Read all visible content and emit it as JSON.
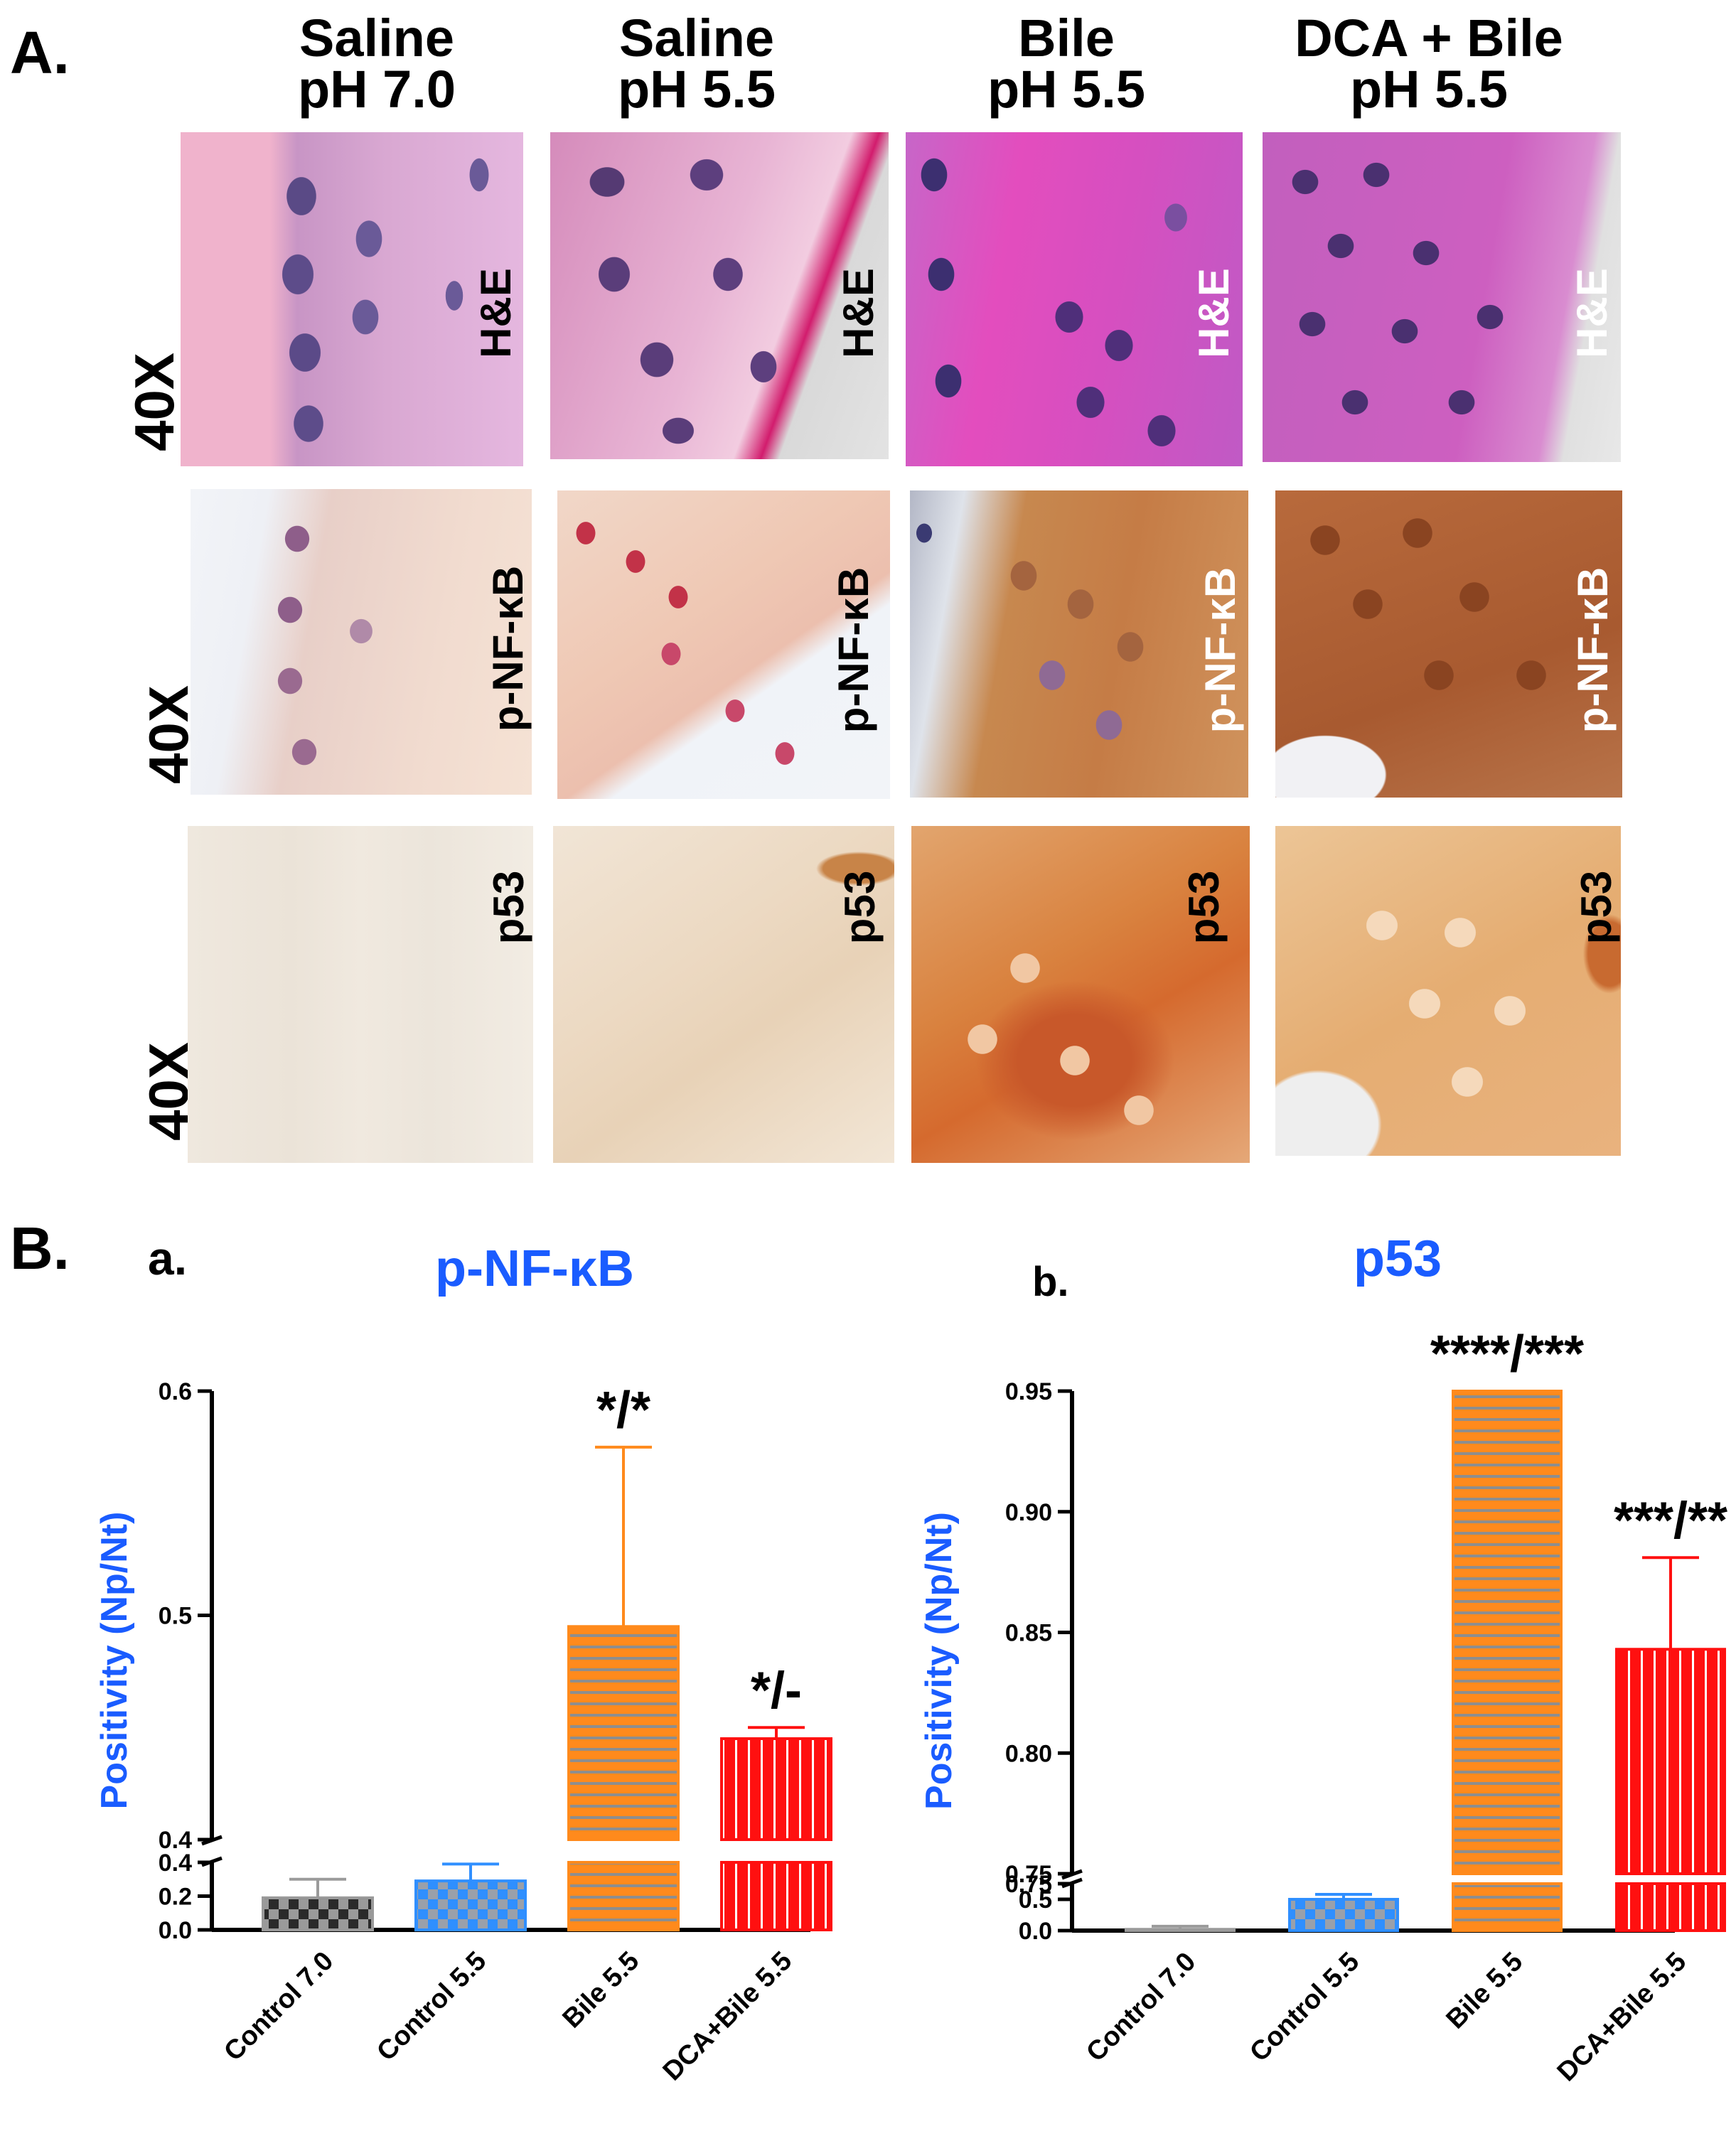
{
  "panel_a": {
    "letter": "A.",
    "columns": [
      {
        "line1": "Saline",
        "line2": "pH 7.0"
      },
      {
        "line1": "Saline",
        "line2": "pH 5.5"
      },
      {
        "line1": "Bile",
        "line2": "pH 5.5"
      },
      {
        "line1": "DCA + Bile",
        "line2": "pH 5.5"
      }
    ],
    "rows": [
      {
        "magnification": "40X",
        "stain": "H&E"
      },
      {
        "magnification": "40X",
        "stain": "p-NF-κB"
      },
      {
        "magnification": "40X",
        "stain": "p53"
      }
    ]
  },
  "panel_b": {
    "letter": "B.",
    "colors": {
      "control70": "#9a9a9a",
      "control55": "#2f8fff",
      "bile55": "#ff8a1c",
      "dcabile55": "#ff1010",
      "title": "#1a5cff"
    }
  },
  "chart_data": [
    {
      "type": "bar",
      "sublabel": "a.",
      "title": "p-NF-κB",
      "ylabel": "Positivity (Np/Nt)",
      "categories": [
        "Control 7.0",
        "Control 5.5",
        "Bile 5.5",
        "DCA+Bile 5.5"
      ],
      "values": [
        0.19,
        0.29,
        0.495,
        0.445
      ],
      "errors": [
        0.11,
        0.1,
        0.08,
        0.005
      ],
      "annotations": [
        "",
        "",
        "*/*",
        "*/-"
      ],
      "y_break": {
        "lower_range": [
          0.0,
          0.4
        ],
        "upper_range": [
          0.4,
          0.6
        ]
      },
      "lower_ticks": [
        "0.0",
        "0.2",
        "0.4"
      ],
      "upper_ticks": [
        "0.4",
        "0.5",
        "0.6"
      ],
      "patterns": [
        "checker",
        "checker",
        "horizontal",
        "vertical"
      ]
    },
    {
      "type": "bar",
      "sublabel": "b.",
      "title": "p53",
      "ylabel": "Positivity (Np/Nt)",
      "categories": [
        "Control 7.0",
        "Control 5.5",
        "Bile 5.5",
        "DCA+Bile 5.5"
      ],
      "values": [
        0.02,
        0.5,
        0.95,
        0.843
      ],
      "errors": [
        0.05,
        0.08,
        0.0,
        0.038
      ],
      "annotations": [
        "",
        "",
        "****/***",
        "***/**"
      ],
      "y_break": {
        "lower_range": [
          0.0,
          0.75
        ],
        "upper_range": [
          0.75,
          0.95
        ]
      },
      "lower_ticks": [
        "0.0",
        "0.5",
        "0.75"
      ],
      "upper_ticks": [
        "0.75",
        "0.80",
        "0.85",
        "0.90",
        "0.95"
      ],
      "patterns": [
        "none",
        "checker",
        "horizontal",
        "vertical"
      ]
    }
  ]
}
